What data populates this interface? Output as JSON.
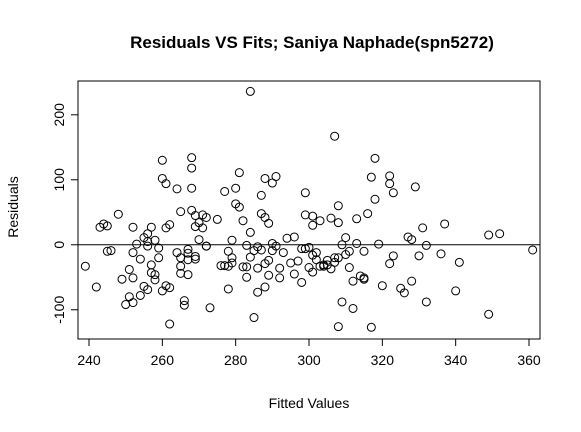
{
  "chart_data": {
    "type": "scatter",
    "title": "Residuals VS Fits; Saniya Naphade(spn5272)",
    "xlabel": "Fitted Values",
    "ylabel": "Residuals",
    "xlim": [
      237,
      363
    ],
    "ylim": [
      -145,
      252
    ],
    "xticks": [
      240,
      260,
      280,
      300,
      320,
      340,
      360
    ],
    "yticks": [
      -100,
      0,
      100,
      200
    ],
    "xtick_labels": [
      "240",
      "260",
      "280",
      "300",
      "320",
      "340",
      "360"
    ],
    "ytick_labels": [
      "-100",
      "0",
      "100",
      "200"
    ],
    "reference_line_y": 0,
    "grid": false,
    "points": [
      [
        239,
        -33
      ],
      [
        242,
        -65
      ],
      [
        243,
        27
      ],
      [
        244,
        32
      ],
      [
        245,
        -10
      ],
      [
        245,
        29
      ],
      [
        246,
        -9
      ],
      [
        248,
        47
      ],
      [
        249,
        -53
      ],
      [
        250,
        -92
      ],
      [
        251,
        -38
      ],
      [
        251,
        -80
      ],
      [
        252,
        -89
      ],
      [
        252,
        -51
      ],
      [
        252,
        27
      ],
      [
        252,
        -12
      ],
      [
        253,
        1
      ],
      [
        254,
        -78
      ],
      [
        254,
        -22
      ],
      [
        255,
        11
      ],
      [
        255,
        -64
      ],
      [
        256,
        17
      ],
      [
        256,
        5
      ],
      [
        256,
        -69
      ],
      [
        256,
        -2
      ],
      [
        257,
        27
      ],
      [
        257,
        -43
      ],
      [
        257,
        -31
      ],
      [
        258,
        7
      ],
      [
        258,
        -54
      ],
      [
        258,
        -46
      ],
      [
        259,
        -5
      ],
      [
        259,
        -20
      ],
      [
        260,
        102
      ],
      [
        260,
        130
      ],
      [
        260,
        -71
      ],
      [
        261,
        94
      ],
      [
        261,
        26
      ],
      [
        261,
        -63
      ],
      [
        262,
        -66
      ],
      [
        262,
        31
      ],
      [
        262,
        -122
      ],
      [
        264,
        -12
      ],
      [
        264,
        86
      ],
      [
        265,
        -33
      ],
      [
        265,
        -44
      ],
      [
        265,
        -20
      ],
      [
        265,
        51
      ],
      [
        266,
        -93
      ],
      [
        266,
        -86
      ],
      [
        267,
        -46
      ],
      [
        267,
        -13
      ],
      [
        267,
        -23
      ],
      [
        267,
        -7
      ],
      [
        268,
        134
      ],
      [
        268,
        118
      ],
      [
        268,
        87
      ],
      [
        268,
        53
      ],
      [
        269,
        -18
      ],
      [
        269,
        45
      ],
      [
        269,
        28
      ],
      [
        269,
        -22
      ],
      [
        270,
        34
      ],
      [
        270,
        8
      ],
      [
        271,
        26
      ],
      [
        271,
        46
      ],
      [
        272,
        -2
      ],
      [
        272,
        42
      ],
      [
        272,
        -2
      ],
      [
        273,
        -97
      ],
      [
        275,
        39
      ],
      [
        276,
        -32
      ],
      [
        277,
        -32
      ],
      [
        277,
        82
      ],
      [
        278,
        -33
      ],
      [
        278,
        -10
      ],
      [
        278,
        -68
      ],
      [
        279,
        -28
      ],
      [
        279,
        -20
      ],
      [
        279,
        7
      ],
      [
        280,
        63
      ],
      [
        280,
        87
      ],
      [
        281,
        58
      ],
      [
        281,
        111
      ],
      [
        282,
        -34
      ],
      [
        282,
        37
      ],
      [
        283,
        -1
      ],
      [
        283,
        -50
      ],
      [
        283,
        -34
      ],
      [
        284,
        19
      ],
      [
        284,
        -19
      ],
      [
        284,
        236
      ],
      [
        285,
        -9
      ],
      [
        285,
        -112
      ],
      [
        286,
        -73
      ],
      [
        286,
        -3
      ],
      [
        286,
        -36
      ],
      [
        287,
        -8
      ],
      [
        287,
        48
      ],
      [
        287,
        76
      ],
      [
        288,
        102
      ],
      [
        288,
        -29
      ],
      [
        288,
        42
      ],
      [
        288,
        -65
      ],
      [
        289,
        33
      ],
      [
        289,
        -47
      ],
      [
        289,
        -24
      ],
      [
        290,
        2
      ],
      [
        290,
        -9
      ],
      [
        290,
        95
      ],
      [
        291,
        105
      ],
      [
        291,
        -2
      ],
      [
        292,
        -36
      ],
      [
        292,
        -51
      ],
      [
        293,
        -12
      ],
      [
        294,
        10
      ],
      [
        295,
        -28
      ],
      [
        296,
        -45
      ],
      [
        296,
        12
      ],
      [
        297,
        -25
      ],
      [
        298,
        -58
      ],
      [
        298,
        -6
      ],
      [
        299,
        -6
      ],
      [
        299,
        80
      ],
      [
        299,
        46
      ],
      [
        300,
        -4
      ],
      [
        300,
        -35
      ],
      [
        301,
        -16
      ],
      [
        301,
        -42
      ],
      [
        301,
        30
      ],
      [
        301,
        44
      ],
      [
        302,
        -23
      ],
      [
        302,
        -12
      ],
      [
        303,
        -33
      ],
      [
        303,
        37
      ],
      [
        304,
        -33
      ],
      [
        304,
        -31
      ],
      [
        305,
        -24
      ],
      [
        305,
        -31
      ],
      [
        306,
        -37
      ],
      [
        306,
        41
      ],
      [
        307,
        167
      ],
      [
        307,
        -20
      ],
      [
        307,
        -27
      ],
      [
        308,
        -126
      ],
      [
        308,
        34
      ],
      [
        308,
        -20
      ],
      [
        308,
        60
      ],
      [
        309,
        0
      ],
      [
        309,
        -88
      ],
      [
        310,
        11
      ],
      [
        310,
        -15
      ],
      [
        311,
        -10
      ],
      [
        311,
        -35
      ],
      [
        312,
        -56
      ],
      [
        312,
        -98
      ],
      [
        313,
        2
      ],
      [
        313,
        40
      ],
      [
        314,
        -48
      ],
      [
        315,
        -10
      ],
      [
        315,
        -51
      ],
      [
        315,
        -53
      ],
      [
        316,
        48
      ],
      [
        317,
        -127
      ],
      [
        317,
        104
      ],
      [
        318,
        70
      ],
      [
        318,
        133
      ],
      [
        319,
        1
      ],
      [
        320,
        -63
      ],
      [
        322,
        -29
      ],
      [
        322,
        106
      ],
      [
        322,
        94
      ],
      [
        323,
        -17
      ],
      [
        323,
        80
      ],
      [
        325,
        -67
      ],
      [
        326,
        -74
      ],
      [
        327,
        12
      ],
      [
        328,
        -56
      ],
      [
        328,
        8
      ],
      [
        329,
        89
      ],
      [
        330,
        -17
      ],
      [
        331,
        26
      ],
      [
        332,
        -1
      ],
      [
        332,
        -88
      ],
      [
        336,
        -14
      ],
      [
        337,
        32
      ],
      [
        340,
        -71
      ],
      [
        341,
        -27
      ],
      [
        349,
        15
      ],
      [
        349,
        -107
      ],
      [
        352,
        17
      ],
      [
        361,
        -8
      ]
    ]
  }
}
